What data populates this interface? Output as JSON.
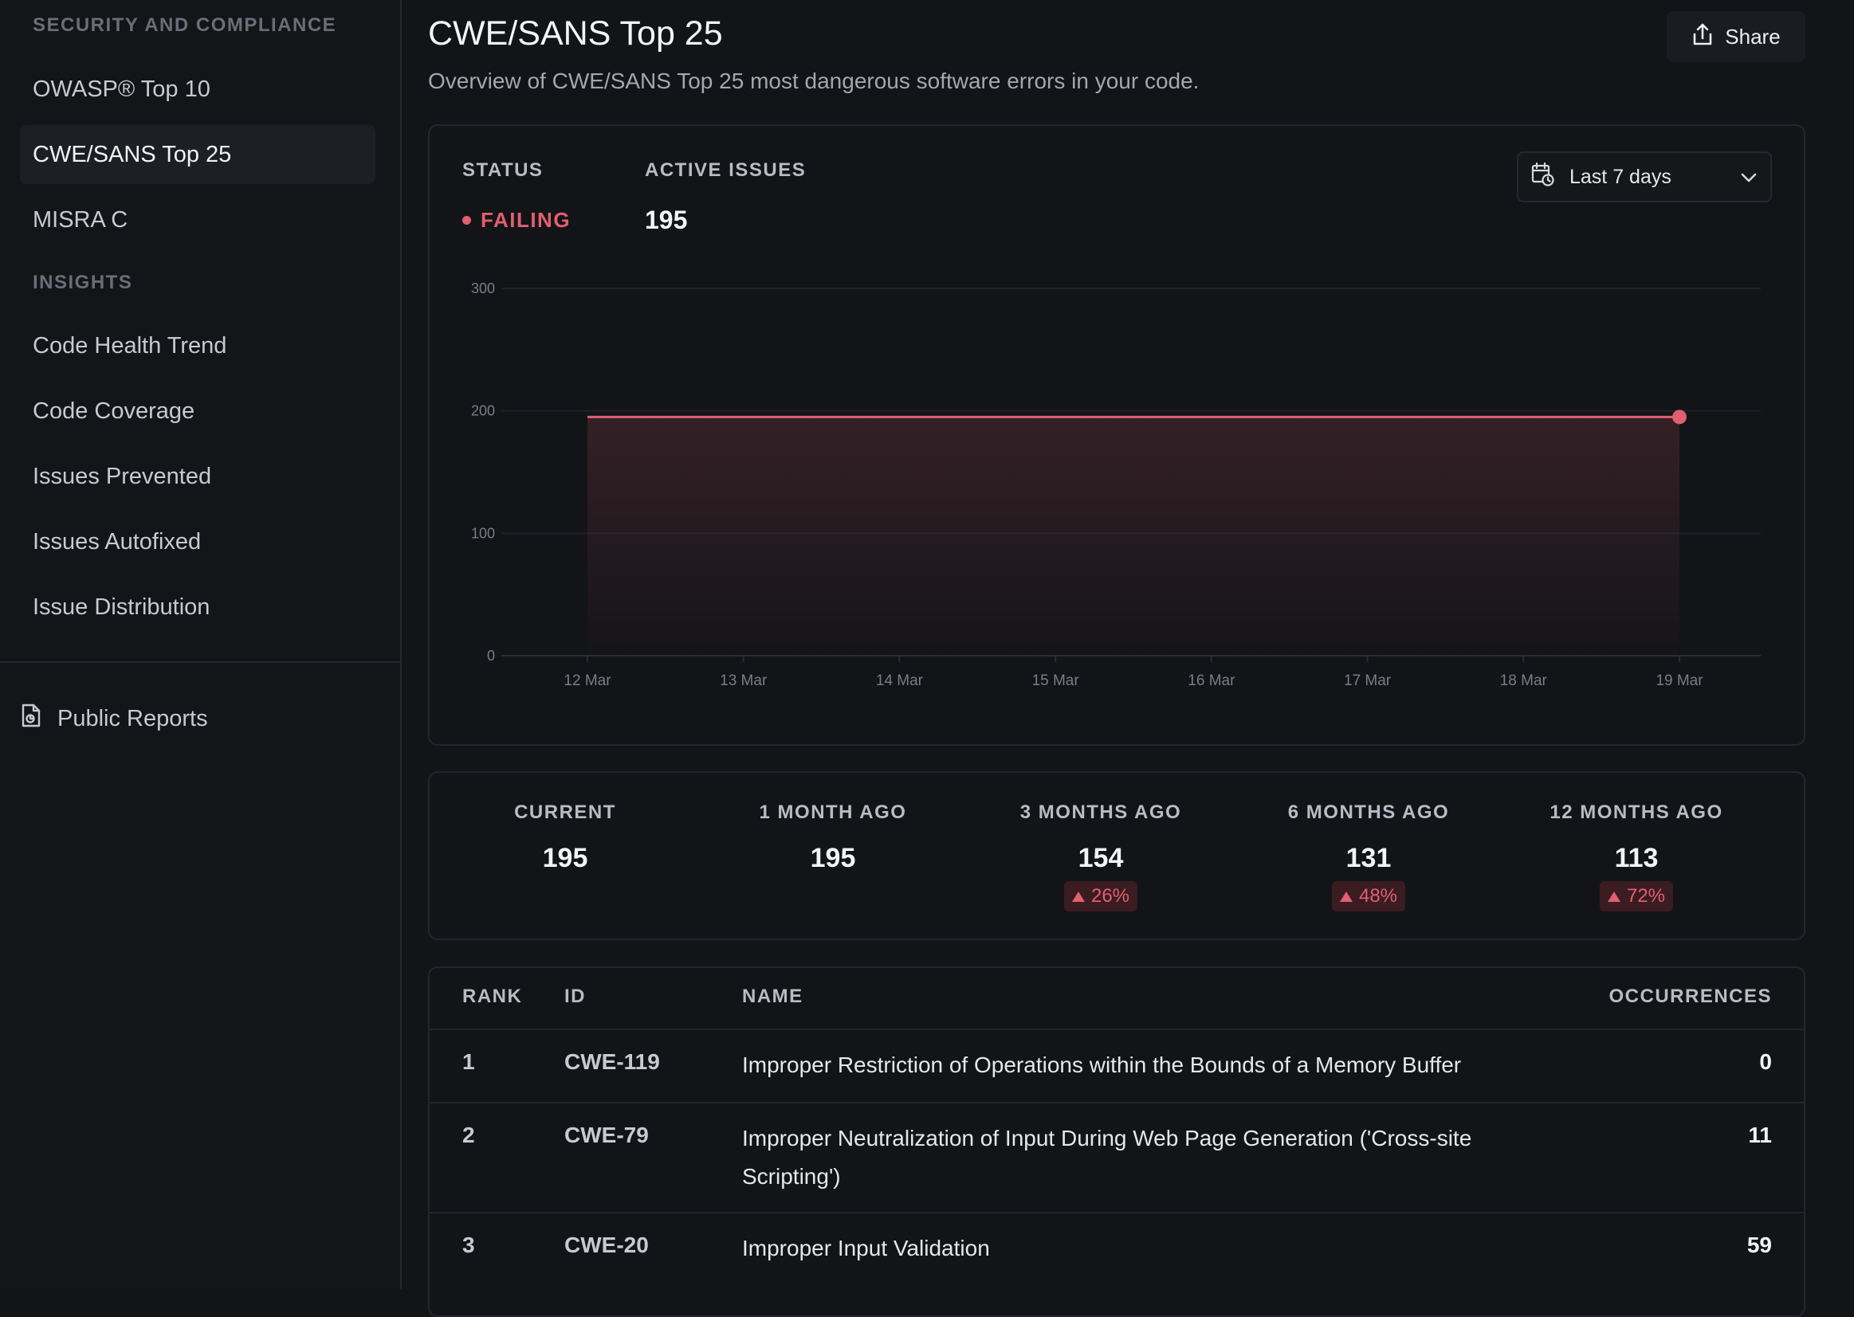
{
  "sidebar": {
    "section1_heading": "SECURITY AND COMPLIANCE",
    "items1": [
      {
        "label": "OWASP® Top 10"
      },
      {
        "label": "CWE/SANS Top 25"
      },
      {
        "label": "MISRA C"
      }
    ],
    "section2_heading": "INSIGHTS",
    "items2": [
      {
        "label": "Code Health Trend"
      },
      {
        "label": "Code Coverage"
      },
      {
        "label": "Issues Prevented"
      },
      {
        "label": "Issues Autofixed"
      },
      {
        "label": "Issue Distribution"
      }
    ],
    "public_reports": "Public Reports"
  },
  "header": {
    "title": "CWE/SANS Top 25",
    "subtitle": "Overview of CWE/SANS Top 25 most dangerous software errors in your code.",
    "share_label": "Share"
  },
  "summary": {
    "status_label": "STATUS",
    "status_value": "FAILING",
    "active_label": "ACTIVE ISSUES",
    "active_value": "195",
    "range_selected": "Last 7 days"
  },
  "colors": {
    "accent": "#e0606f",
    "background": "#131418"
  },
  "chart_data": {
    "type": "area",
    "x": [
      "12 Mar",
      "13 Mar",
      "14 Mar",
      "15 Mar",
      "16 Mar",
      "17 Mar",
      "18 Mar",
      "19 Mar"
    ],
    "y": [
      195,
      195,
      195,
      195,
      195,
      195,
      195,
      195
    ],
    "ylim": [
      0,
      300
    ],
    "yticks": [
      0,
      100,
      200,
      300
    ],
    "grid": true
  },
  "stats": [
    {
      "label": "CURRENT",
      "value": "195",
      "change": ""
    },
    {
      "label": "1 MONTH AGO",
      "value": "195",
      "change": ""
    },
    {
      "label": "3 MONTHS AGO",
      "value": "154",
      "change": "26%"
    },
    {
      "label": "6 MONTHS AGO",
      "value": "131",
      "change": "48%"
    },
    {
      "label": "12 MONTHS AGO",
      "value": "113",
      "change": "72%"
    }
  ],
  "table": {
    "headers": {
      "rank": "RANK",
      "id": "ID",
      "name": "NAME",
      "occurrences": "OCCURRENCES"
    },
    "rows": [
      {
        "rank": "1",
        "id": "CWE-119",
        "name": "Improper Restriction of Operations within the Bounds of a Memory Buffer",
        "occurrences": "0"
      },
      {
        "rank": "2",
        "id": "CWE-79",
        "name": "Improper Neutralization of Input During Web Page Generation ('Cross-site Scripting')",
        "occurrences": "11"
      },
      {
        "rank": "3",
        "id": "CWE-20",
        "name": "Improper Input Validation",
        "occurrences": "59"
      }
    ]
  }
}
